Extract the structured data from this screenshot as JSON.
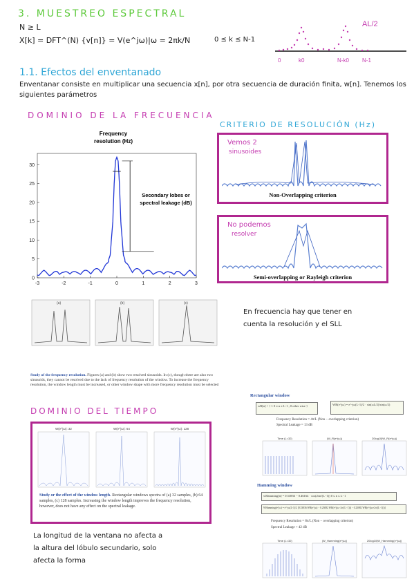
{
  "page": {
    "title": "3. MUESTREO ESPECTRAL",
    "cond": "N ≥ L",
    "formula": "X[k] = DFT^(N) {v[n]} = V(e^jω)|ω = 2πk/N",
    "range": "0 ≤ k ≤ N-1",
    "sketch": {
      "peak_label": "AL/2",
      "ticks": [
        "0",
        "k0",
        "N-k0",
        "N-1"
      ]
    }
  },
  "section": {
    "title": "1.1. Efectos del enventanado",
    "body": "Enventanar consiste en multiplicar una secuencia x[n], por otra secuencia de duración finita, w[n]. Tenemos los siguientes parámetros"
  },
  "freq_domain": {
    "heading": "DOMINIO DE LA FRECUENCIA",
    "fig_title_1": "Frequency",
    "fig_title_2": "resolution (Hz)",
    "lobes_1": "Secondary lobes or",
    "lobes_2": "spectral leakage (dB)",
    "chart_data": {
      "type": "line",
      "x": [
        -3,
        -2.75,
        -2.5,
        -2.25,
        -2,
        -1.75,
        -1.5,
        -1.25,
        -1,
        -0.75,
        -0.5,
        -0.35,
        -0.25,
        -0.15,
        -0.1,
        -0.05,
        0,
        0.05,
        0.1,
        0.15,
        0.25,
        0.35,
        0.5,
        0.75,
        1,
        1.25,
        1.5,
        1.75,
        2,
        2.25,
        2.5,
        2.75,
        3
      ],
      "y": [
        1,
        2,
        1,
        2,
        1.5,
        2,
        1.5,
        2,
        2,
        2.5,
        3,
        4,
        6,
        15,
        25,
        31,
        32,
        31,
        25,
        15,
        6,
        4,
        3,
        2.5,
        2,
        2,
        1.5,
        2,
        1.5,
        2,
        1,
        2,
        1
      ],
      "xticks": [
        "-3",
        "-2",
        "-1",
        "0",
        "1",
        "2",
        "3"
      ],
      "yticks": [
        "0",
        "5",
        "10",
        "15",
        "20",
        "25",
        "30"
      ],
      "xlim": [
        -3,
        3
      ],
      "ylim": [
        0,
        33
      ]
    }
  },
  "criteria": {
    "heading": "CRITERIO DE RESOLUCIÓN (Hz)",
    "box1_note_1": "Vemos 2",
    "box1_note_2": "sinusoides",
    "box1_caption": "Non-Overlapping criterion",
    "box2_note_1": "No podemos",
    "box2_note_2": "resolver",
    "box2_caption": "Semi-overlapping or Rayleigh criterion"
  },
  "freq_note": {
    "line1": "En frecuencia hay que tener en",
    "line2": "cuenta la resolución y el SLL"
  },
  "study_freq": {
    "bold": "Study of the frequency resolution.",
    "text": " Figures (a) and (b) show two resolved sinusoids. In (c), though there are also two sinusoids, they cannot be resolved due to the lack of frequency resolution of the window. To increase the frequency resolution, the window length must be increased, or other window shape with more frequency resolution must be selected",
    "panels": [
      "(a)",
      "(b)",
      "(c)"
    ]
  },
  "time_domain": {
    "heading": "DOMINIO DEL TIEMPO",
    "panels": [
      "W(e^jω): 32",
      "W(e^jω): 64",
      "W(e^jω): 128"
    ],
    "caption_bold": "Study or the effect of the window length.",
    "caption_text": " Rectangular windows spectra of (a) 32 samples, (b) 64 samples, (c) 128 samples. Increasing the window length improves the frequency resolution, however, does not have any effect on the spectral leakage."
  },
  "time_note": {
    "line1": "La longitud de la ventana no afecta a",
    "line2": "la altura del lóbulo secundario, solo",
    "line3": "afecta la forma"
  },
  "rect_window": {
    "title": "Rectangular window",
    "eq1": "wR[n] = { 1  0 ≤ n ≤ L-1 ; 0 other wise }",
    "eq2": "WR(e^jω) = e^-jω(L-1)/2 · sin(ωL/2)/sin(ω/2)",
    "res": "Frequency Resolution = 4π/L (Non − overlapping criterion)",
    "leak": "Spectral Leakage = 13 dB",
    "plots": [
      "Time (L=32)",
      "|W_R(e^jω)|",
      "20log10|W_R(e^jω)|"
    ]
  },
  "hamming_window": {
    "title": "Hamming window",
    "eq1": "wHamming[n] = 0.53836 − 0.46164 · cos(2πn/(L−1))   0 ≤ n ≤ L−1",
    "eq2": "WHamming(e^jω) = e^-jω(L-1)/2 [0.53836 WR(e^jω) − 0.23082 WR(e^j(ω−2π/(L−1))) − 0.23082 WR(e^j(ω+2π/(L−1)))]",
    "res": "Frequency Resolution = 8π/L (Non − overlapping criterion)",
    "leak": "Spectral Leakage > 42 dB",
    "plots": [
      "Time (L=32)",
      "|W_Hamming(e^jω)|",
      "20log10|W_Hamming(e^jω)|"
    ]
  }
}
